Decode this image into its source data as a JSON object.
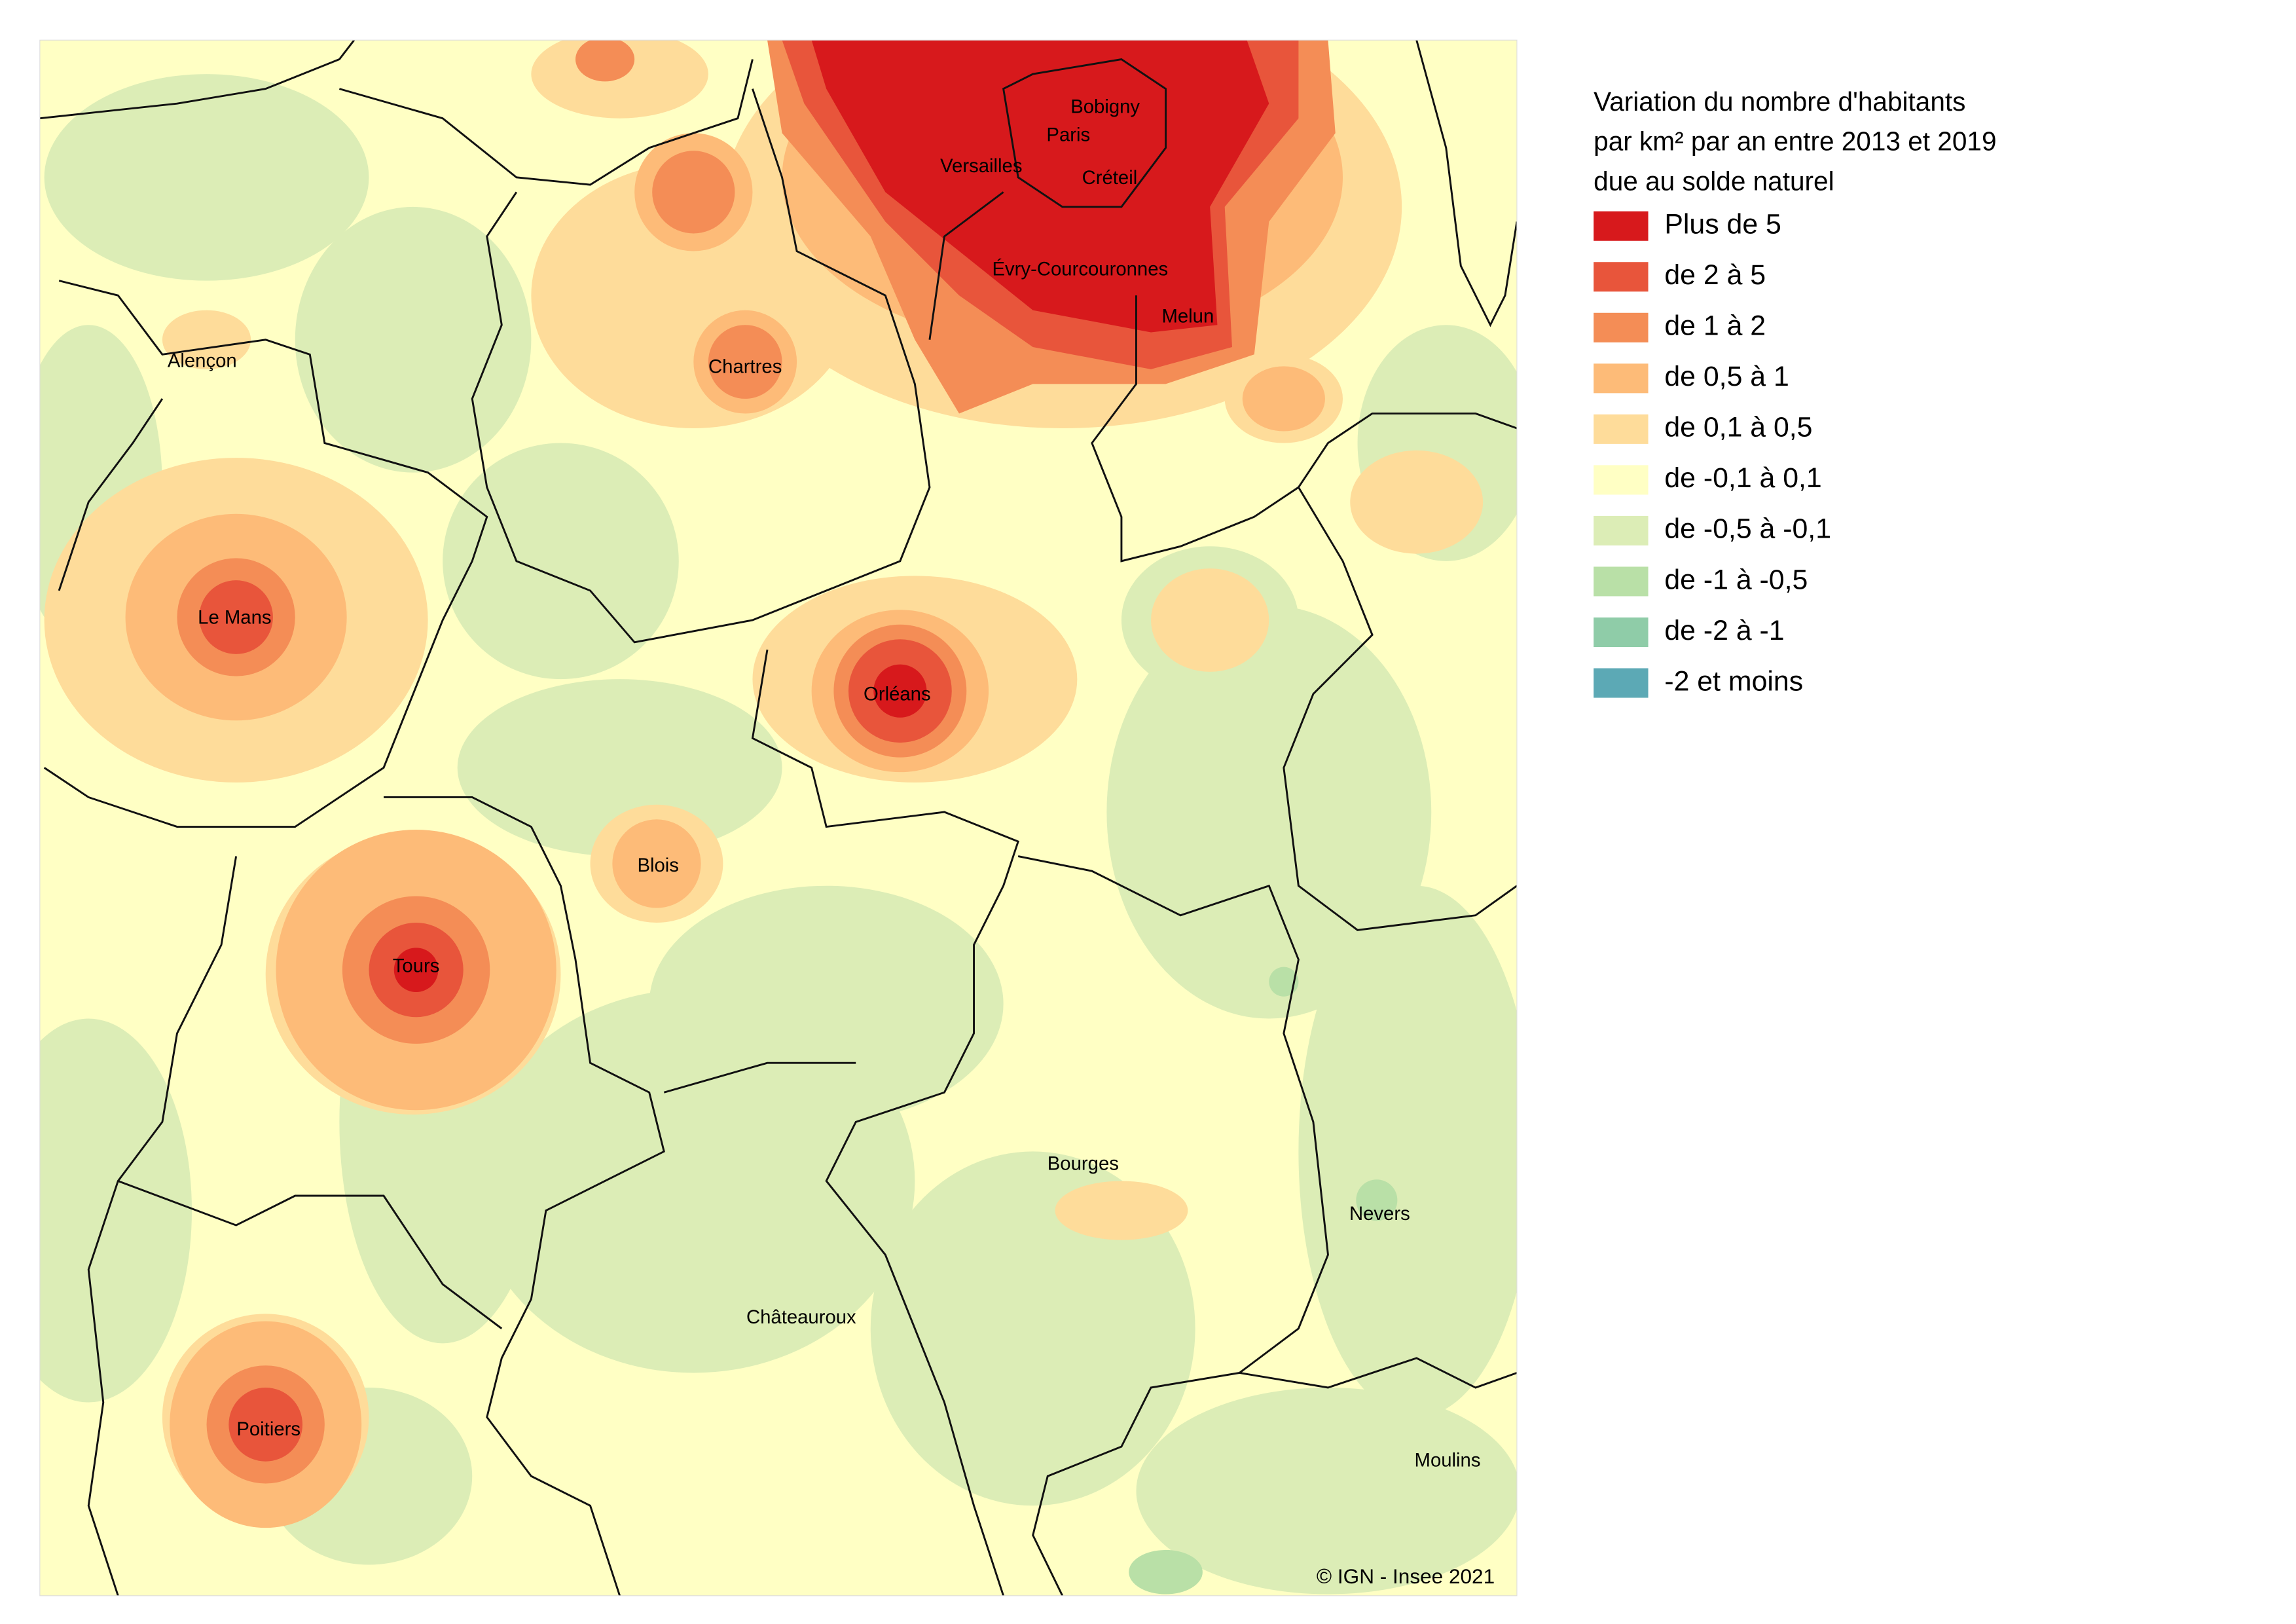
{
  "legend": {
    "title": [
      "Variation du nombre d'habitants",
      "par km² par an entre 2013 et 2019",
      "due au solde naturel"
    ],
    "items": [
      {
        "label": "Plus de 5",
        "color": "#d7191c"
      },
      {
        "label": "de 2 à 5",
        "color": "#e8553b"
      },
      {
        "label": "de 1 à 2",
        "color": "#f48d56"
      },
      {
        "label": "de 0,5 à 1",
        "color": "#fdbb78"
      },
      {
        "label": "de 0,1 à 0,5",
        "color": "#fedc9a"
      },
      {
        "label": "de -0,1 à 0,1",
        "color": "#ffffc4"
      },
      {
        "label": "de -0,5 à -0,1",
        "color": "#dcedb6"
      },
      {
        "label": "de -1 à -0,5",
        "color": "#b9e0a7"
      },
      {
        "label": "de -2 à -1",
        "color": "#8fcca8"
      },
      {
        "label": "-2 et moins",
        "color": "#5ca9b5"
      }
    ]
  },
  "cities": [
    "Bobigny",
    "Paris",
    "Versailles",
    "Créteil",
    "Évry-Courcouronnes",
    "Melun",
    "Alençon",
    "Chartres",
    "Le Mans",
    "Orléans",
    "Blois",
    "Tours",
    "Bourges",
    "Nevers",
    "Châteauroux",
    "Poitiers",
    "Moulins"
  ],
  "credit": "© IGN - Insee 2021"
}
